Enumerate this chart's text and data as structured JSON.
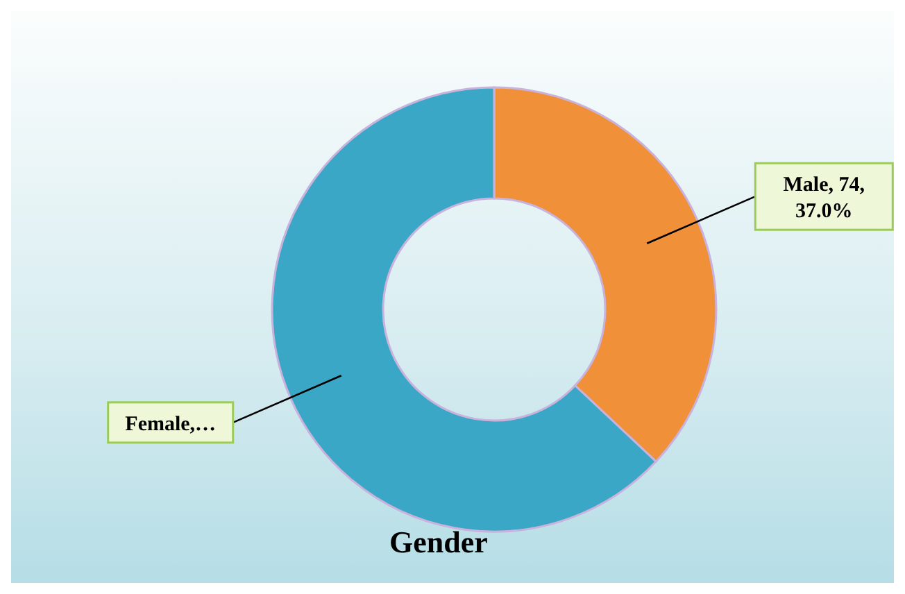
{
  "chart_data": {
    "type": "donut",
    "title": "Gender",
    "categories": [
      "Male",
      "Female"
    ],
    "values": [
      74,
      126
    ],
    "colors": [
      "#f0913a",
      "#3aa7c6"
    ],
    "value_labels": [
      " 74, 37.0%",
      "…"
    ]
  }
}
